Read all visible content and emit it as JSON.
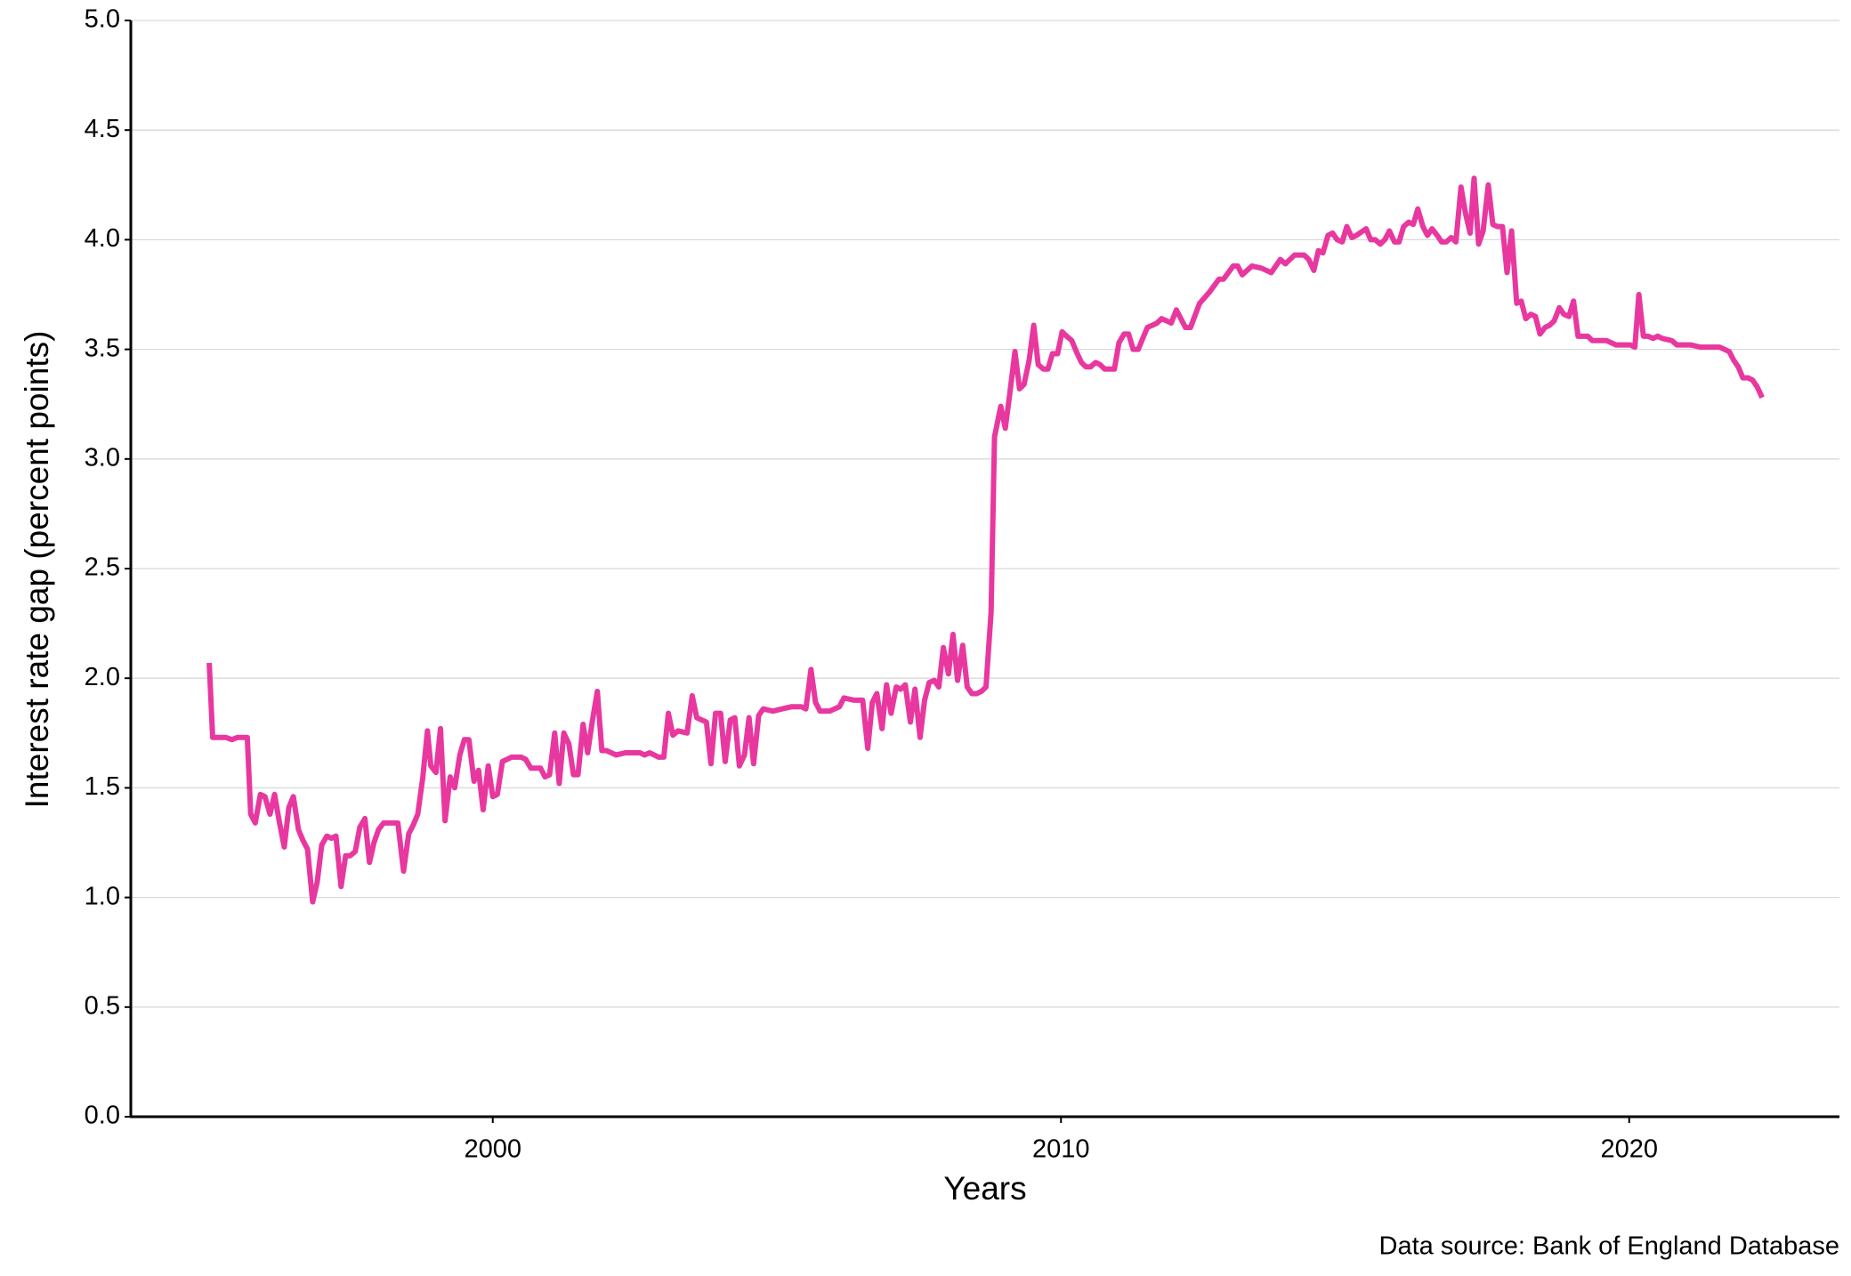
{
  "chart_data": {
    "type": "line",
    "x_label": "Years",
    "y_label": "Interest rate gap (percent points)",
    "caption": "Data source: Bank of England Database",
    "xlim": [
      1993.63,
      2023.7
    ],
    "xticks": [
      2000,
      2010,
      2020
    ],
    "ylim": [
      0,
      5
    ],
    "yticks": [
      {
        "value": 0,
        "label": "0.0"
      },
      0.5,
      {
        "value": 1,
        "label": "1.0"
      },
      1.5,
      {
        "value": 2,
        "label": "2.0"
      },
      2.5,
      {
        "value": 3,
        "label": "3.0"
      },
      3.5,
      {
        "value": 4,
        "label": "4.0"
      },
      4.5,
      {
        "value": 5,
        "label": "5.0"
      }
    ],
    "grid": true,
    "series": [
      {
        "color": "#e8389f",
        "x": [
          1995.01,
          1995.07,
          1995.3,
          1995.41,
          1995.51,
          1995.68,
          1995.74,
          1995.82,
          1995.91,
          1995.99,
          1996.08,
          1996.16,
          1996.24,
          1996.33,
          1996.41,
          1996.49,
          1996.58,
          1996.66,
          1996.74,
          1996.83,
          1996.91,
          1996.99,
          1997.08,
          1997.16,
          1997.24,
          1997.33,
          1997.41,
          1997.49,
          1997.58,
          1997.66,
          1997.75,
          1997.83,
          1997.91,
          1997.99,
          1998.08,
          1998.16,
          1998.33,
          1998.43,
          1998.52,
          1998.6,
          1998.68,
          1998.77,
          1998.85,
          1998.91,
          1999.0,
          1999.08,
          1999.16,
          1999.25,
          1999.33,
          1999.42,
          1999.5,
          1999.58,
          1999.67,
          1999.75,
          1999.83,
          1999.92,
          2000.0,
          2000.08,
          2000.17,
          2000.33,
          2000.5,
          2000.58,
          2000.67,
          2000.84,
          2000.92,
          2001.0,
          2001.09,
          2001.17,
          2001.25,
          2001.34,
          2001.42,
          2001.5,
          2001.59,
          2001.67,
          2001.75,
          2001.84,
          2001.92,
          2002.0,
          2002.17,
          2002.34,
          2002.59,
          2002.67,
          2002.76,
          2002.92,
          2003.01,
          2003.09,
          2003.17,
          2003.26,
          2003.42,
          2003.51,
          2003.59,
          2003.76,
          2003.84,
          2003.92,
          2004.01,
          2004.09,
          2004.18,
          2004.26,
          2004.34,
          2004.43,
          2004.51,
          2004.59,
          2004.68,
          2004.76,
          2004.93,
          2005.09,
          2005.26,
          2005.43,
          2005.51,
          2005.6,
          2005.68,
          2005.76,
          2005.93,
          2006.1,
          2006.18,
          2006.35,
          2006.51,
          2006.6,
          2006.68,
          2006.76,
          2006.85,
          2006.93,
          2007.01,
          2007.1,
          2007.18,
          2007.26,
          2007.35,
          2007.43,
          2007.52,
          2007.6,
          2007.68,
          2007.77,
          2007.85,
          2007.93,
          2008.02,
          2008.1,
          2008.18,
          2008.27,
          2008.35,
          2008.43,
          2008.52,
          2008.6,
          2008.68,
          2008.77,
          2008.83,
          2008.94,
          2009.02,
          2009.1,
          2009.19,
          2009.27,
          2009.35,
          2009.44,
          2009.52,
          2009.6,
          2009.69,
          2009.77,
          2009.85,
          2009.94,
          2010.02,
          2010.1,
          2010.19,
          2010.27,
          2010.36,
          2010.44,
          2010.52,
          2010.61,
          2010.69,
          2010.77,
          2010.94,
          2011.02,
          2011.11,
          2011.19,
          2011.27,
          2011.36,
          2011.44,
          2011.52,
          2011.61,
          2011.69,
          2011.77,
          2011.86,
          2011.94,
          2012.03,
          2012.11,
          2012.19,
          2012.28,
          2012.44,
          2012.61,
          2012.78,
          2012.86,
          2013.03,
          2013.11,
          2013.19,
          2013.36,
          2013.53,
          2013.7,
          2013.86,
          2013.95,
          2014.11,
          2014.28,
          2014.36,
          2014.45,
          2014.53,
          2014.61,
          2014.7,
          2014.78,
          2014.86,
          2014.95,
          2015.03,
          2015.12,
          2015.2,
          2015.37,
          2015.45,
          2015.53,
          2015.62,
          2015.7,
          2015.78,
          2015.87,
          2015.95,
          2016.03,
          2016.12,
          2016.2,
          2016.28,
          2016.37,
          2016.45,
          2016.53,
          2016.62,
          2016.7,
          2016.78,
          2016.87,
          2016.95,
          2017.04,
          2017.12,
          2017.2,
          2017.27,
          2017.35,
          2017.43,
          2017.52,
          2017.6,
          2017.68,
          2017.77,
          2017.85,
          2017.93,
          2018.02,
          2018.1,
          2018.18,
          2018.27,
          2018.35,
          2018.43,
          2018.52,
          2018.6,
          2018.68,
          2018.77,
          2018.85,
          2018.94,
          2019.02,
          2019.1,
          2019.19,
          2019.27,
          2019.35,
          2019.6,
          2019.77,
          2020.02,
          2020.1,
          2020.17,
          2020.25,
          2020.33,
          2020.42,
          2020.5,
          2020.58,
          2020.75,
          2020.84,
          2021.09,
          2021.25,
          2021.59,
          2021.76,
          2021.84,
          2021.92,
          2022.0,
          2022.09,
          2022.17,
          2022.25,
          2022.34
        ],
        "values": [
          2.07,
          1.73,
          1.73,
          1.72,
          1.73,
          1.73,
          1.38,
          1.34,
          1.47,
          1.46,
          1.38,
          1.47,
          1.35,
          1.23,
          1.41,
          1.46,
          1.31,
          1.26,
          1.22,
          0.98,
          1.07,
          1.24,
          1.28,
          1.27,
          1.28,
          1.05,
          1.19,
          1.19,
          1.21,
          1.32,
          1.36,
          1.16,
          1.25,
          1.31,
          1.34,
          1.34,
          1.34,
          1.12,
          1.29,
          1.33,
          1.38,
          1.55,
          1.76,
          1.6,
          1.57,
          1.77,
          1.35,
          1.55,
          1.5,
          1.65,
          1.72,
          1.72,
          1.53,
          1.58,
          1.4,
          1.6,
          1.46,
          1.47,
          1.62,
          1.64,
          1.64,
          1.63,
          1.59,
          1.59,
          1.55,
          1.56,
          1.75,
          1.52,
          1.75,
          1.7,
          1.56,
          1.56,
          1.79,
          1.66,
          1.8,
          1.94,
          1.67,
          1.67,
          1.65,
          1.66,
          1.66,
          1.65,
          1.66,
          1.64,
          1.64,
          1.84,
          1.74,
          1.76,
          1.75,
          1.92,
          1.82,
          1.8,
          1.61,
          1.84,
          1.84,
          1.62,
          1.81,
          1.82,
          1.6,
          1.65,
          1.82,
          1.61,
          1.83,
          1.86,
          1.85,
          1.86,
          1.87,
          1.87,
          1.86,
          2.04,
          1.89,
          1.85,
          1.85,
          1.87,
          1.91,
          1.9,
          1.9,
          1.68,
          1.89,
          1.93,
          1.77,
          1.97,
          1.84,
          1.96,
          1.95,
          1.97,
          1.8,
          1.95,
          1.73,
          1.9,
          1.98,
          1.99,
          1.96,
          2.14,
          2.02,
          2.2,
          1.99,
          2.15,
          1.96,
          1.93,
          1.93,
          1.94,
          1.96,
          2.3,
          3.1,
          3.24,
          3.14,
          3.3,
          3.49,
          3.32,
          3.34,
          3.45,
          3.61,
          3.43,
          3.41,
          3.41,
          3.48,
          3.48,
          3.58,
          3.56,
          3.54,
          3.49,
          3.44,
          3.42,
          3.42,
          3.44,
          3.43,
          3.41,
          3.41,
          3.53,
          3.57,
          3.57,
          3.5,
          3.5,
          3.55,
          3.6,
          3.61,
          3.62,
          3.64,
          3.63,
          3.62,
          3.68,
          3.64,
          3.6,
          3.6,
          3.71,
          3.76,
          3.82,
          3.82,
          3.88,
          3.88,
          3.84,
          3.88,
          3.87,
          3.85,
          3.91,
          3.89,
          3.93,
          3.93,
          3.91,
          3.86,
          3.95,
          3.94,
          4.02,
          4.03,
          4.0,
          3.99,
          4.06,
          4.01,
          4.02,
          4.05,
          4.0,
          4.0,
          3.98,
          4.0,
          4.04,
          3.99,
          3.99,
          4.06,
          4.08,
          4.07,
          4.14,
          4.06,
          4.02,
          4.05,
          4.02,
          3.99,
          3.99,
          4.01,
          3.99,
          4.24,
          4.12,
          4.03,
          4.28,
          3.98,
          4.04,
          4.25,
          4.07,
          4.06,
          4.06,
          3.85,
          4.04,
          3.71,
          3.72,
          3.64,
          3.66,
          3.65,
          3.57,
          3.6,
          3.61,
          3.63,
          3.69,
          3.66,
          3.65,
          3.72,
          3.56,
          3.56,
          3.56,
          3.54,
          3.54,
          3.52,
          3.52,
          3.51,
          3.75,
          3.56,
          3.56,
          3.55,
          3.56,
          3.55,
          3.54,
          3.52,
          3.52,
          3.51,
          3.51,
          3.49,
          3.45,
          3.42,
          3.37,
          3.37,
          3.36,
          3.33,
          3.28
        ]
      }
    ]
  }
}
